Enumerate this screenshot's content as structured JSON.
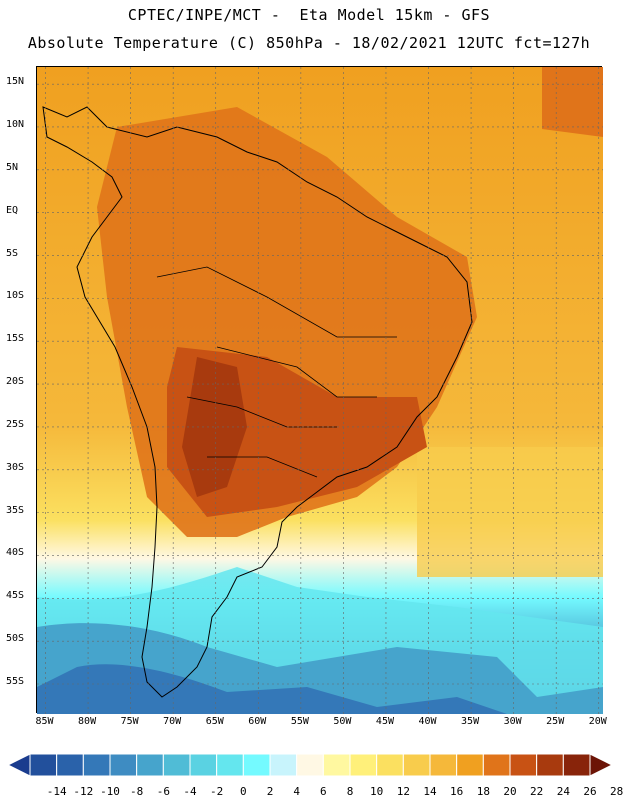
{
  "header": {
    "title_line1": "CPTEC/INPE/MCT -  Eta Model 15km - GFS",
    "title_line2": "Absolute Temperature (C) 850hPa - 18/02/2021 12UTC fct=127h"
  },
  "map": {
    "lat_labels": [
      "15N",
      "10N",
      "5N",
      "EQ",
      "5S",
      "10S",
      "15S",
      "20S",
      "25S",
      "30S",
      "35S",
      "40S",
      "45S",
      "50S",
      "55S"
    ],
    "lon_labels": [
      "85W",
      "80W",
      "75W",
      "70W",
      "65W",
      "60W",
      "55W",
      "50W",
      "45W",
      "40W",
      "35W",
      "30W",
      "25W",
      "20W"
    ],
    "lat_range": [
      17,
      -58.5
    ],
    "lon_range": [
      -86,
      -19.5
    ]
  },
  "colorbar": {
    "labels": [
      "-14",
      "-12",
      "-10",
      "-8",
      "-6",
      "-4",
      "-2",
      "0",
      "2",
      "4",
      "6",
      "8",
      "10",
      "12",
      "14",
      "16",
      "18",
      "20",
      "22",
      "24",
      "26",
      "28"
    ],
    "colors": [
      "#1a3c8e",
      "#22509c",
      "#2a62aa",
      "#3478b8",
      "#3e8cc2",
      "#46a4cc",
      "#50bcd6",
      "#5ad2e2",
      "#64e6ee",
      "#74faff",
      "#c8f4fc",
      "#fff8e4",
      "#fff8a0",
      "#fff07a",
      "#fbe060",
      "#f8cc4c",
      "#f5b83a",
      "#f0a020",
      "#e0741a",
      "#c85214",
      "#a83a0e",
      "#88240a",
      "#6c1406"
    ]
  }
}
